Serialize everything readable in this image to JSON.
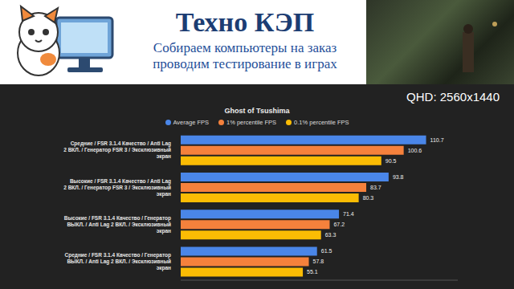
{
  "header": {
    "banner_title": "Техно КЭП",
    "banner_lines": [
      "Собираем компьютеры на заказ",
      "проводим тестирование в играх"
    ],
    "resolution": "QHD: 2560x1440"
  },
  "chart_data": {
    "type": "bar",
    "title": "Ghost of Tsushima",
    "orientation": "horizontal",
    "categories": [
      "Средние / FSR 3.1.4 Качество / Anti Lag 2 ВКЛ. / Генератор FSR 3 / Эксклюзивный экран",
      "Высокие / FSR 3.1.4 Качество / Anti Lag 2 ВКЛ. / Генератор FSR 3 / Эксклюзивный экран",
      "Высокие / FSR 3.1.4 Качество / Генератор ВЫКЛ. / Anti Lag 2 ВКЛ. / Эксклюзивный экран",
      "Средние / FSR 3.1.4 Качество / Генератор ВЫКЛ. / Anti Lag 2 ВКЛ. / Эксклюзивный экран"
    ],
    "series": [
      {
        "name": "Average FPS",
        "color": "#4a86e8",
        "values": [
          110.7,
          93.8,
          71.4,
          61.5
        ]
      },
      {
        "name": "1% percentile FPS",
        "color": "#f5813c",
        "values": [
          100.6,
          83.7,
          67.2,
          57.8
        ]
      },
      {
        "name": "0.1% percentile FPS",
        "color": "#fbbc04",
        "values": [
          90.5,
          80.3,
          63.3,
          55.1
        ]
      }
    ],
    "xlim": [
      0,
      125
    ],
    "data_labels": true,
    "tick_labels": "y",
    "legend": "top",
    "grid": false
  }
}
